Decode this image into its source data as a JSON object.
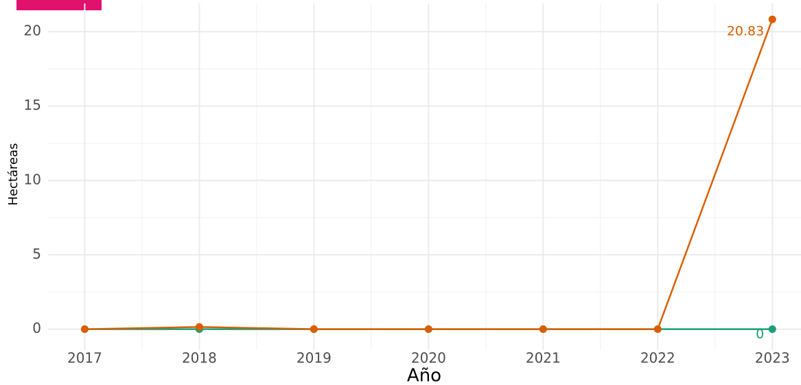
{
  "chart_data": {
    "type": "line",
    "x": [
      2017,
      2018,
      2019,
      2020,
      2021,
      2022,
      2023
    ],
    "series": [
      {
        "color": "#1b9e77",
        "values": [
          0,
          0,
          0,
          0,
          0,
          0,
          0
        ]
      },
      {
        "color": "#d95f02",
        "values": [
          0,
          0.15,
          0,
          0,
          0,
          0,
          20.83
        ]
      }
    ],
    "xlim": [
      2016.68,
      2023.25
    ],
    "xticks": [
      2017,
      2018,
      2019,
      2020,
      2021,
      2022,
      2023
    ],
    "ylim": [
      -1.4,
      21.9
    ],
    "yticks": [
      0,
      5,
      10,
      15,
      20
    ],
    "xlabel": "Año",
    "ylabel": "Hectáreas",
    "grid": true
  }
}
